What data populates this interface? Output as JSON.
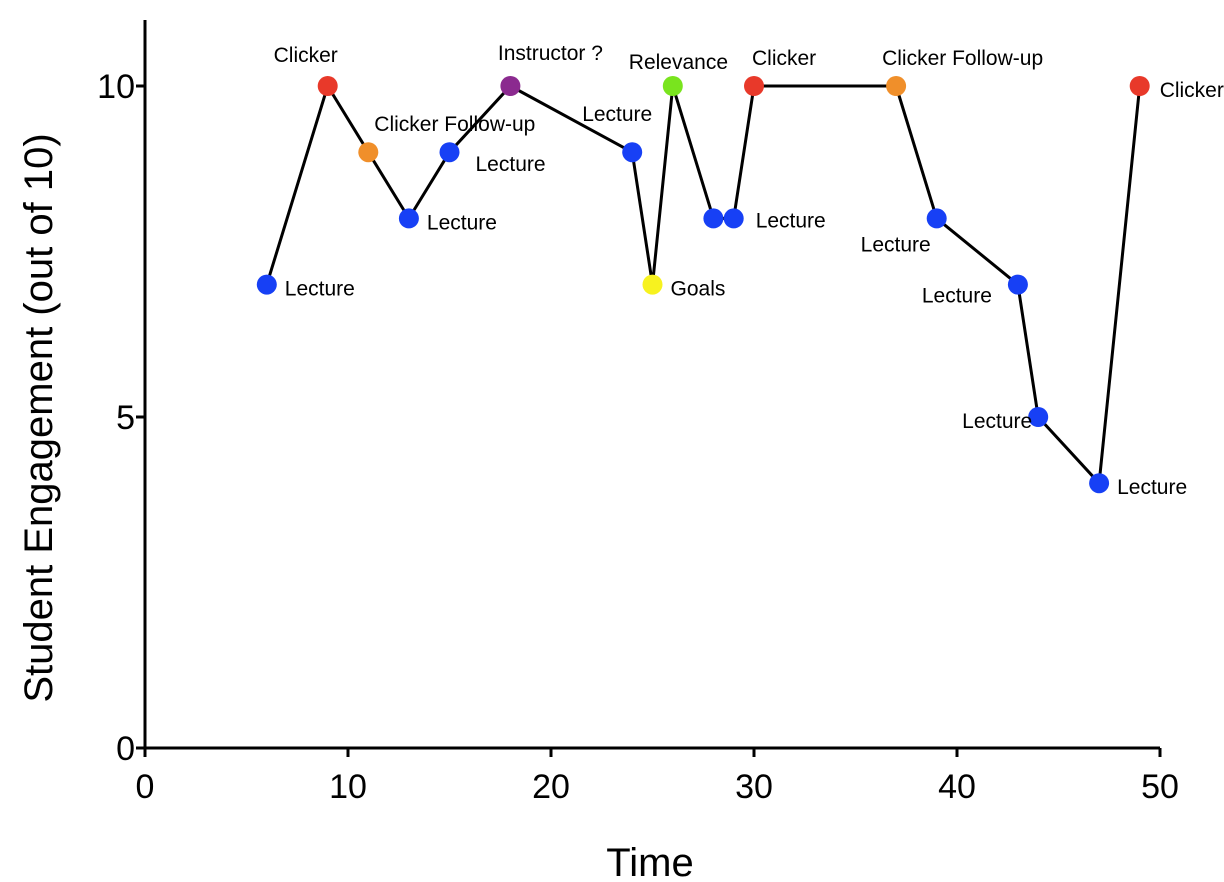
{
  "chart_data": {
    "type": "line",
    "title": "",
    "xlabel": "Time",
    "ylabel": "Student Engagement (out of 10)",
    "xlim": [
      0,
      50
    ],
    "ylim": [
      0,
      10
    ],
    "xticks": [
      0,
      10,
      20,
      30,
      40,
      50
    ],
    "yticks": [
      0,
      5,
      10
    ],
    "grid": false,
    "line_color": "#000000",
    "category_colors": {
      "Lecture": "#1740f5",
      "Clicker": "#e8392a",
      "Clicker Follow-up": "#f08f2a",
      "Instructor ?": "#8b2a8f",
      "Relevance": "#79e41e",
      "Goals": "#f7f21f"
    },
    "points": [
      {
        "x": 6,
        "y": 7,
        "label": "Lecture",
        "category": "Lecture"
      },
      {
        "x": 9,
        "y": 10,
        "label": "Clicker",
        "category": "Clicker"
      },
      {
        "x": 11,
        "y": 9,
        "label": "Clicker Follow-up",
        "category": "Clicker Follow-up"
      },
      {
        "x": 13,
        "y": 8,
        "label": "Lecture",
        "category": "Lecture"
      },
      {
        "x": 15,
        "y": 9,
        "label": "Lecture",
        "category": "Lecture"
      },
      {
        "x": 18,
        "y": 10,
        "label": "Instructor ?",
        "category": "Instructor ?"
      },
      {
        "x": 24,
        "y": 9,
        "label": "Lecture",
        "category": "Lecture"
      },
      {
        "x": 25,
        "y": 7,
        "label": "Goals",
        "category": "Goals"
      },
      {
        "x": 26,
        "y": 10,
        "label": "Relevance",
        "category": "Relevance"
      },
      {
        "x": 28,
        "y": 8,
        "label": "",
        "category": "Lecture"
      },
      {
        "x": 29,
        "y": 8,
        "label": "Lecture",
        "category": "Lecture"
      },
      {
        "x": 30,
        "y": 10,
        "label": "Clicker",
        "category": "Clicker"
      },
      {
        "x": 37,
        "y": 10,
        "label": "Clicker Follow-up",
        "category": "Clicker Follow-up"
      },
      {
        "x": 39,
        "y": 8,
        "label": "Lecture",
        "category": "Lecture"
      },
      {
        "x": 43,
        "y": 7,
        "label": "Lecture",
        "category": "Lecture"
      },
      {
        "x": 44,
        "y": 5,
        "label": "Lecture",
        "category": "Lecture"
      },
      {
        "x": 47,
        "y": 4,
        "label": "Lecture",
        "category": "Lecture"
      },
      {
        "x": 49,
        "y": 10,
        "label": "Clicker",
        "category": "Clicker"
      }
    ]
  }
}
